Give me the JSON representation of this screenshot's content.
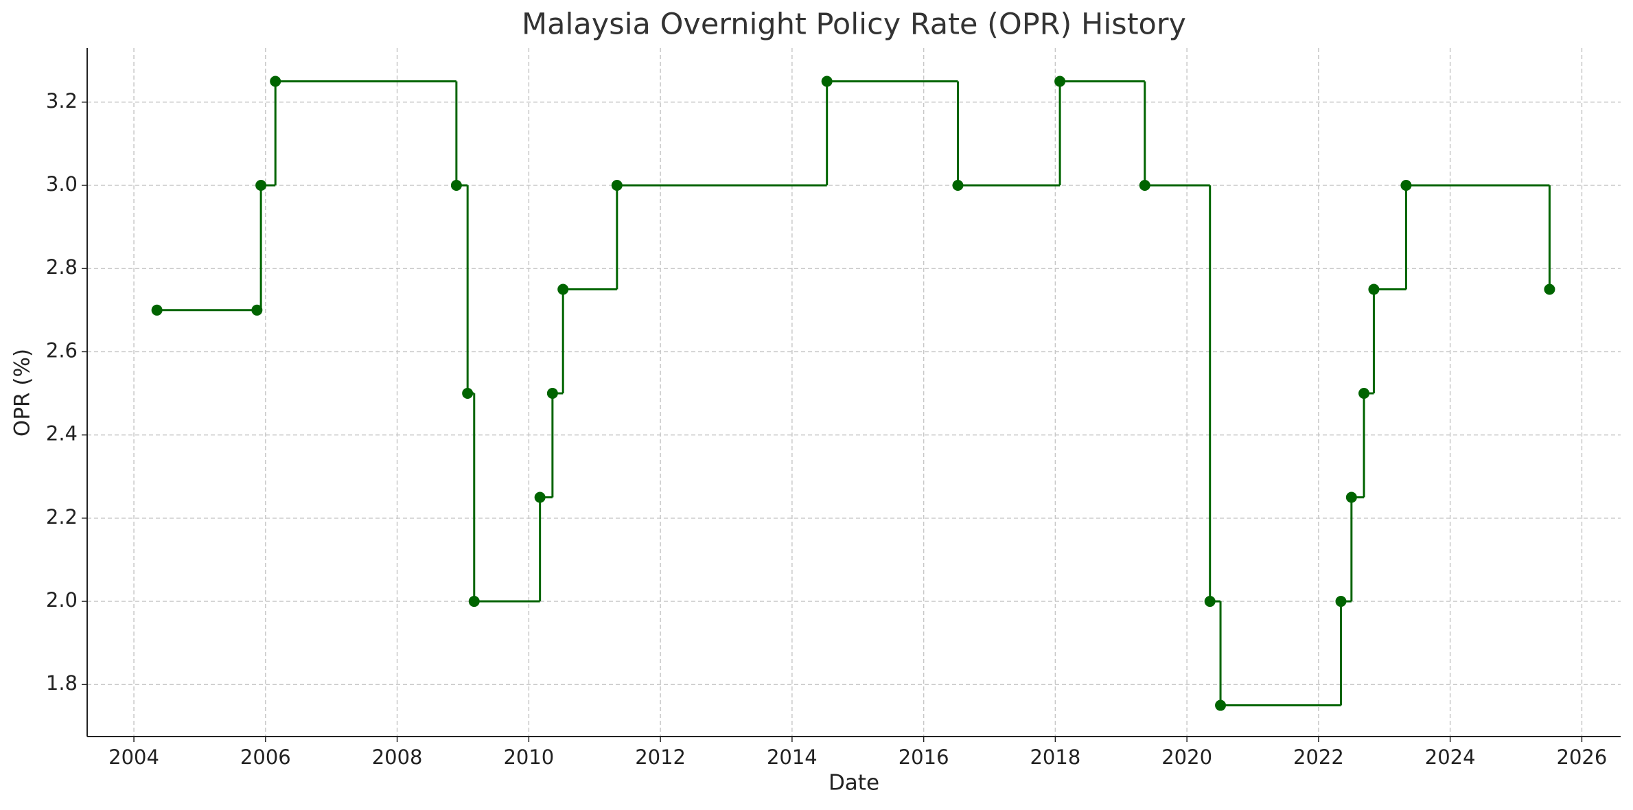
{
  "chart_data": {
    "type": "step",
    "title": "Malaysia Overnight Policy Rate (OPR) History",
    "x_label": "Date",
    "y_label": "OPR (%)",
    "x": [
      2004.35,
      2005.87,
      2005.93,
      2006.15,
      2008.9,
      2009.07,
      2009.17,
      2010.17,
      2010.36,
      2010.52,
      2011.34,
      2014.53,
      2016.52,
      2018.07,
      2019.36,
      2020.35,
      2020.51,
      2022.34,
      2022.5,
      2022.69,
      2022.84,
      2023.33,
      2025.51
    ],
    "series": [
      {
        "name": "OPR",
        "color": "#006400",
        "values": [
          2.7,
          2.7,
          3.0,
          3.25,
          3.0,
          2.5,
          2.0,
          2.25,
          2.5,
          2.75,
          3.0,
          3.25,
          3.0,
          3.25,
          3.0,
          2.0,
          1.75,
          2.0,
          2.25,
          2.5,
          2.75,
          3.0,
          2.75
        ]
      }
    ],
    "xlim": [
      2003.29,
      2026.59
    ],
    "xticks": [
      2004,
      2006,
      2008,
      2010,
      2012,
      2014,
      2016,
      2018,
      2020,
      2022,
      2024,
      2026
    ],
    "ylim": [
      1.675,
      3.33
    ],
    "yticks": [
      {
        "value": 1.8,
        "label": "1.8"
      },
      {
        "value": 2.0,
        "label": "2.0"
      },
      {
        "value": 2.2,
        "label": "2.2"
      },
      {
        "value": 2.4,
        "label": "2.4"
      },
      {
        "value": 2.6,
        "label": "2.6"
      },
      {
        "value": 2.8,
        "label": "2.8"
      },
      {
        "value": 3.0,
        "label": "3.0"
      },
      {
        "value": 3.2,
        "label": "3.2"
      }
    ],
    "grid": true
  }
}
